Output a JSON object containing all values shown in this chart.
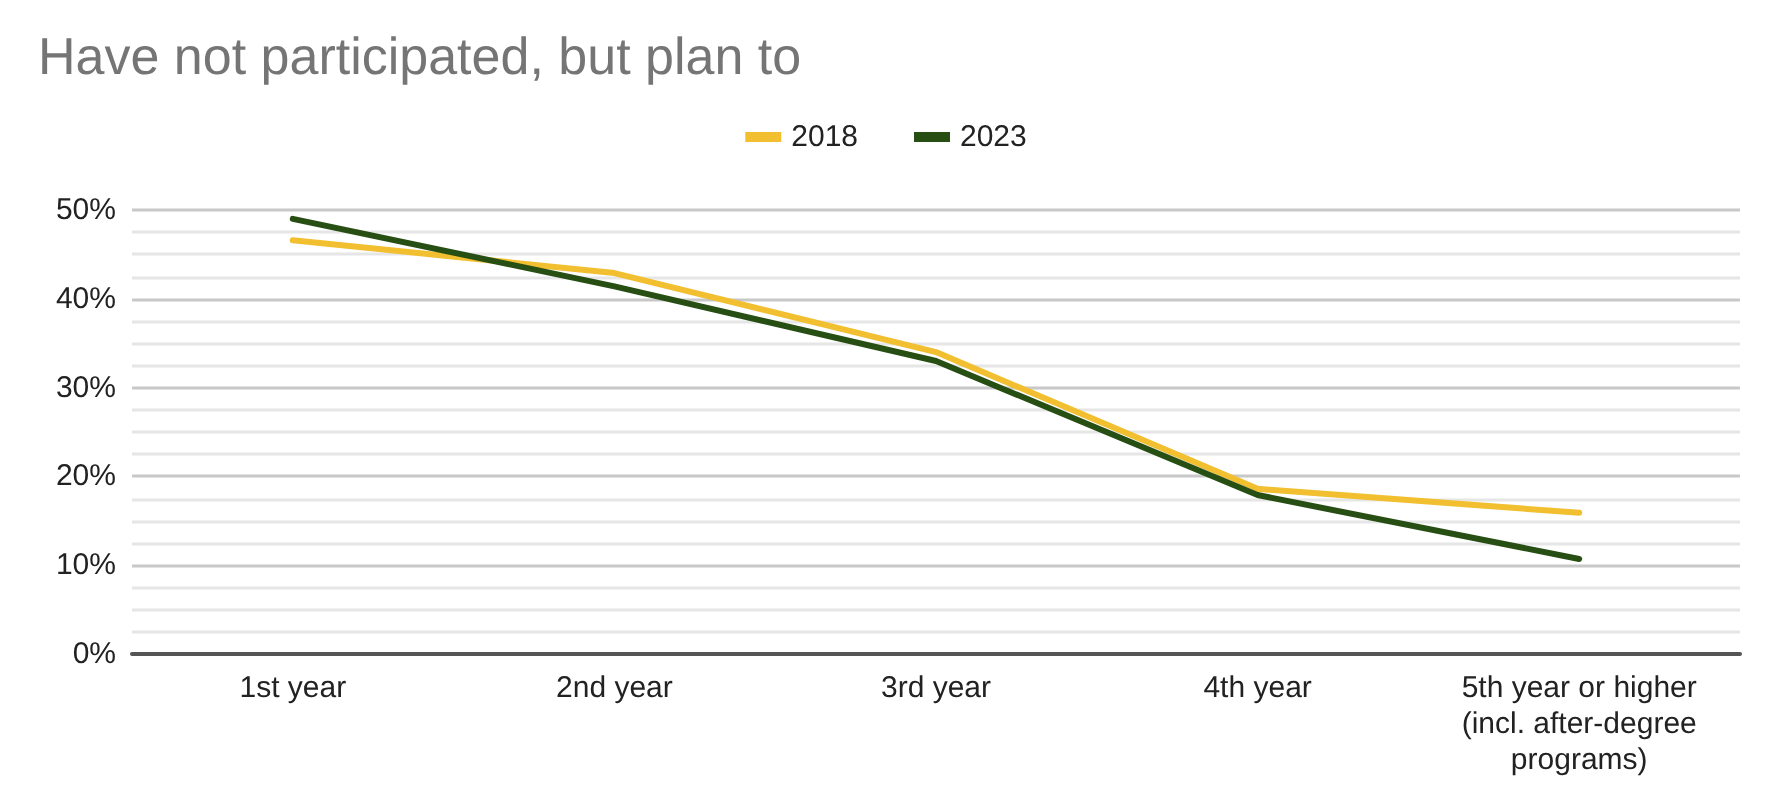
{
  "chart_data": {
    "type": "line",
    "title": "Have not participated, but plan to",
    "categories": [
      "1st year",
      "2nd year",
      "3rd year",
      "4th year",
      "5th year or higher\n(incl. after-degree\nprograms)"
    ],
    "series": [
      {
        "name": "2018",
        "color": "#f1bf2f",
        "values": [
          46.6,
          42.9,
          34.0,
          18.6,
          15.9
        ]
      },
      {
        "name": "2023",
        "color": "#274e13",
        "values": [
          49.0,
          41.4,
          33.0,
          17.9,
          10.7
        ]
      }
    ],
    "ylim": [
      0,
      50
    ],
    "yticks": [
      {
        "value": 0,
        "label": "0%"
      },
      {
        "value": 10,
        "label": "10%"
      },
      {
        "value": 20,
        "label": "20%"
      },
      {
        "value": 30,
        "label": "30%"
      },
      {
        "value": 40,
        "label": "40%"
      },
      {
        "value": 50,
        "label": "50%"
      }
    ],
    "grid": "y",
    "legend": "top",
    "marker": "none",
    "line_style": "solid"
  }
}
